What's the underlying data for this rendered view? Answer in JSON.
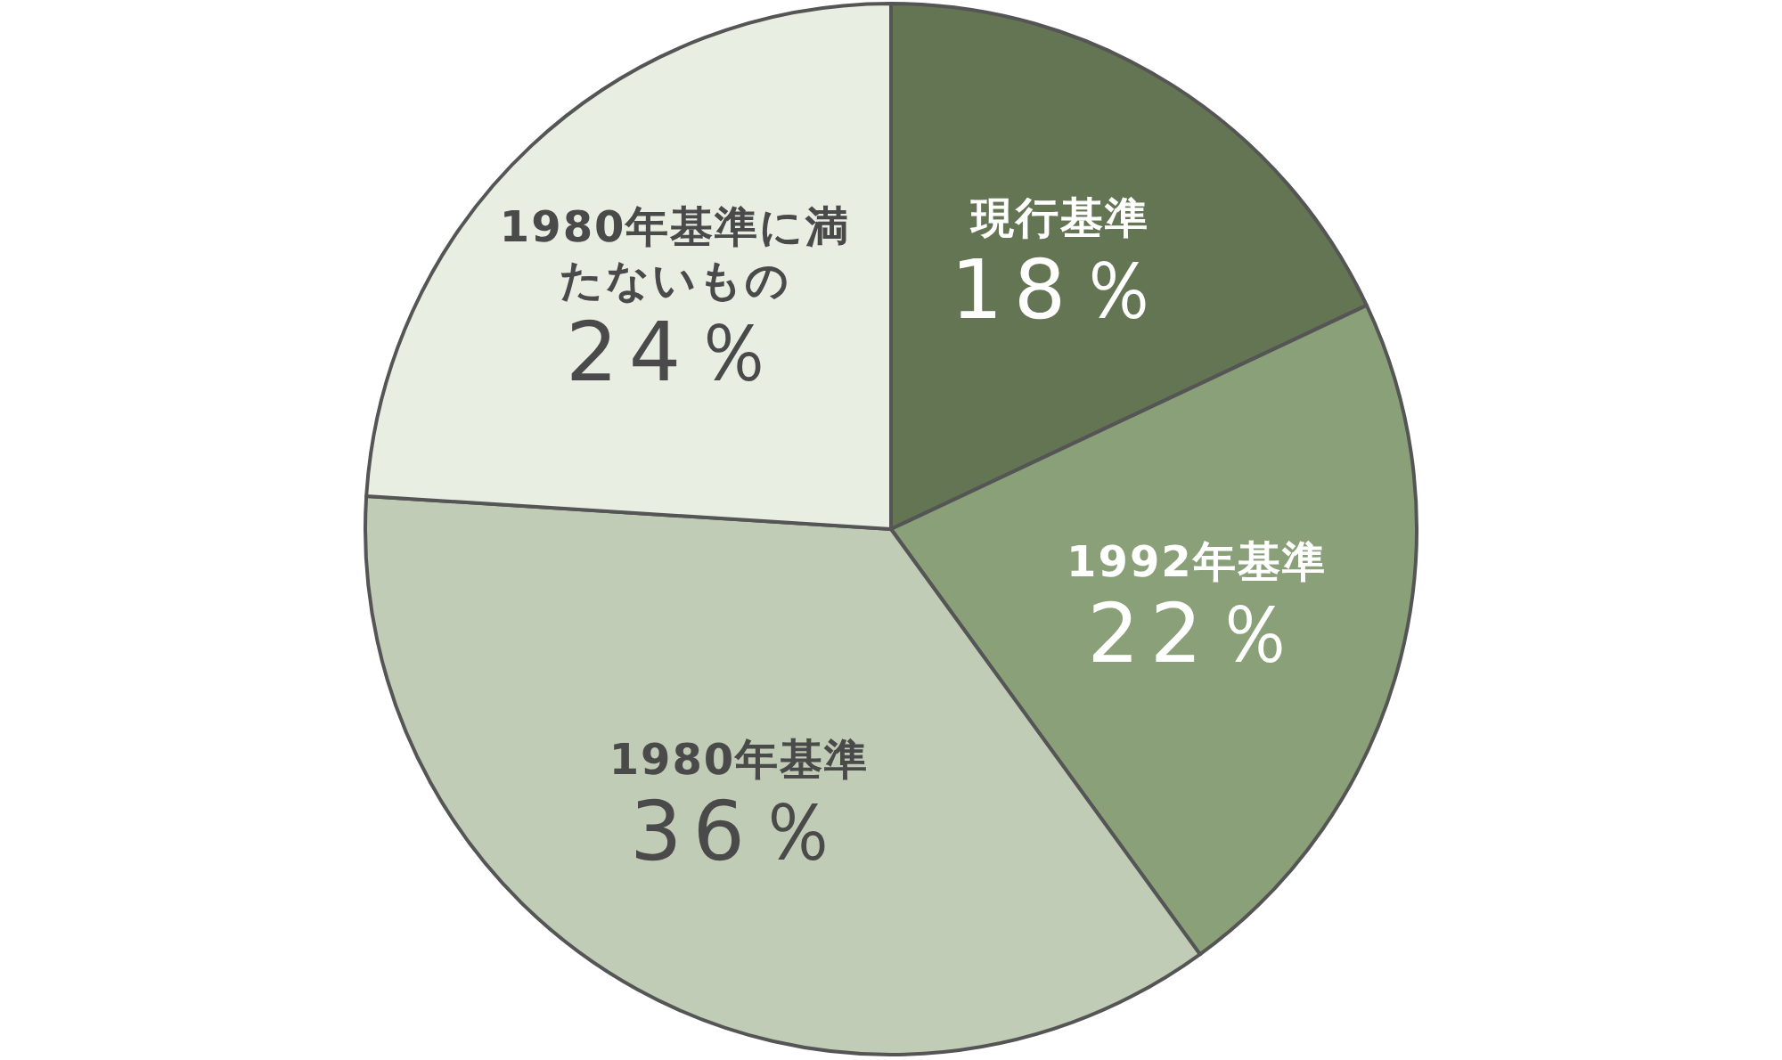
{
  "chart_data": {
    "type": "pie",
    "categories": [
      "現行基準",
      "1992年基準",
      "1980年基準",
      "1980年基準に満たないもの"
    ],
    "values": [
      18,
      22,
      36,
      24
    ],
    "value_labels": [
      "18％",
      "22％",
      "36％",
      "24％"
    ],
    "colors": [
      "#637552",
      "#8aa078",
      "#c0ccb5",
      "#e9eee3"
    ],
    "legend": false
  }
}
